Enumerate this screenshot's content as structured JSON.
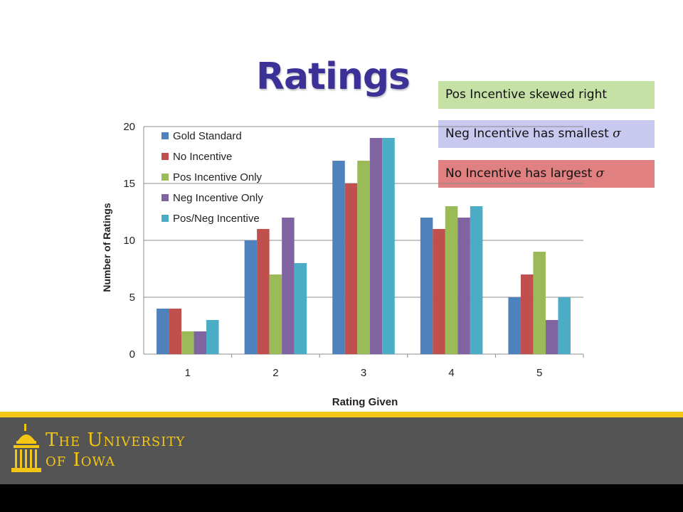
{
  "slide": {
    "title": "Ratings"
  },
  "callouts": [
    {
      "label": "Pos Incentive skewed right",
      "symbol": ""
    },
    {
      "label": "Neg Incentive has smallest",
      "symbol": "σ"
    },
    {
      "label": "No Incentive has largest",
      "symbol": "σ"
    }
  ],
  "colors": {
    "title": "#3c3197",
    "callout_green": "#c5e1a5",
    "callout_purple": "#c9c8ee",
    "callout_red": "#e08080",
    "footer_gold": "#f3c613",
    "footer_gray": "#545454"
  },
  "chart_data": {
    "type": "bar",
    "title": "",
    "xlabel": "Rating Given",
    "ylabel": "Number of Ratings",
    "categories": [
      "1",
      "2",
      "3",
      "4",
      "5"
    ],
    "ylim": [
      0,
      20
    ],
    "yticks": [
      0,
      5,
      10,
      15,
      20
    ],
    "grid": true,
    "legend_position": "top-left",
    "series": [
      {
        "name": "Gold Standard",
        "color": "#4f81bd",
        "values": [
          4,
          10,
          17,
          12,
          5
        ]
      },
      {
        "name": "No Incentive",
        "color": "#c0504d",
        "values": [
          4,
          11,
          15,
          11,
          7
        ]
      },
      {
        "name": "Pos Incentive Only",
        "color": "#9bbb59",
        "values": [
          2,
          7,
          17,
          13,
          9
        ]
      },
      {
        "name": "Neg Incentive Only",
        "color": "#8064a2",
        "values": [
          2,
          12,
          19,
          12,
          3
        ]
      },
      {
        "name": "Pos/Neg Incentive",
        "color": "#4bacc6",
        "values": [
          3,
          8,
          19,
          13,
          5
        ]
      }
    ]
  },
  "footer": {
    "logo_line1": "The University",
    "logo_line2": "of Iowa",
    "logo_icon": "old-capitol-icon"
  }
}
